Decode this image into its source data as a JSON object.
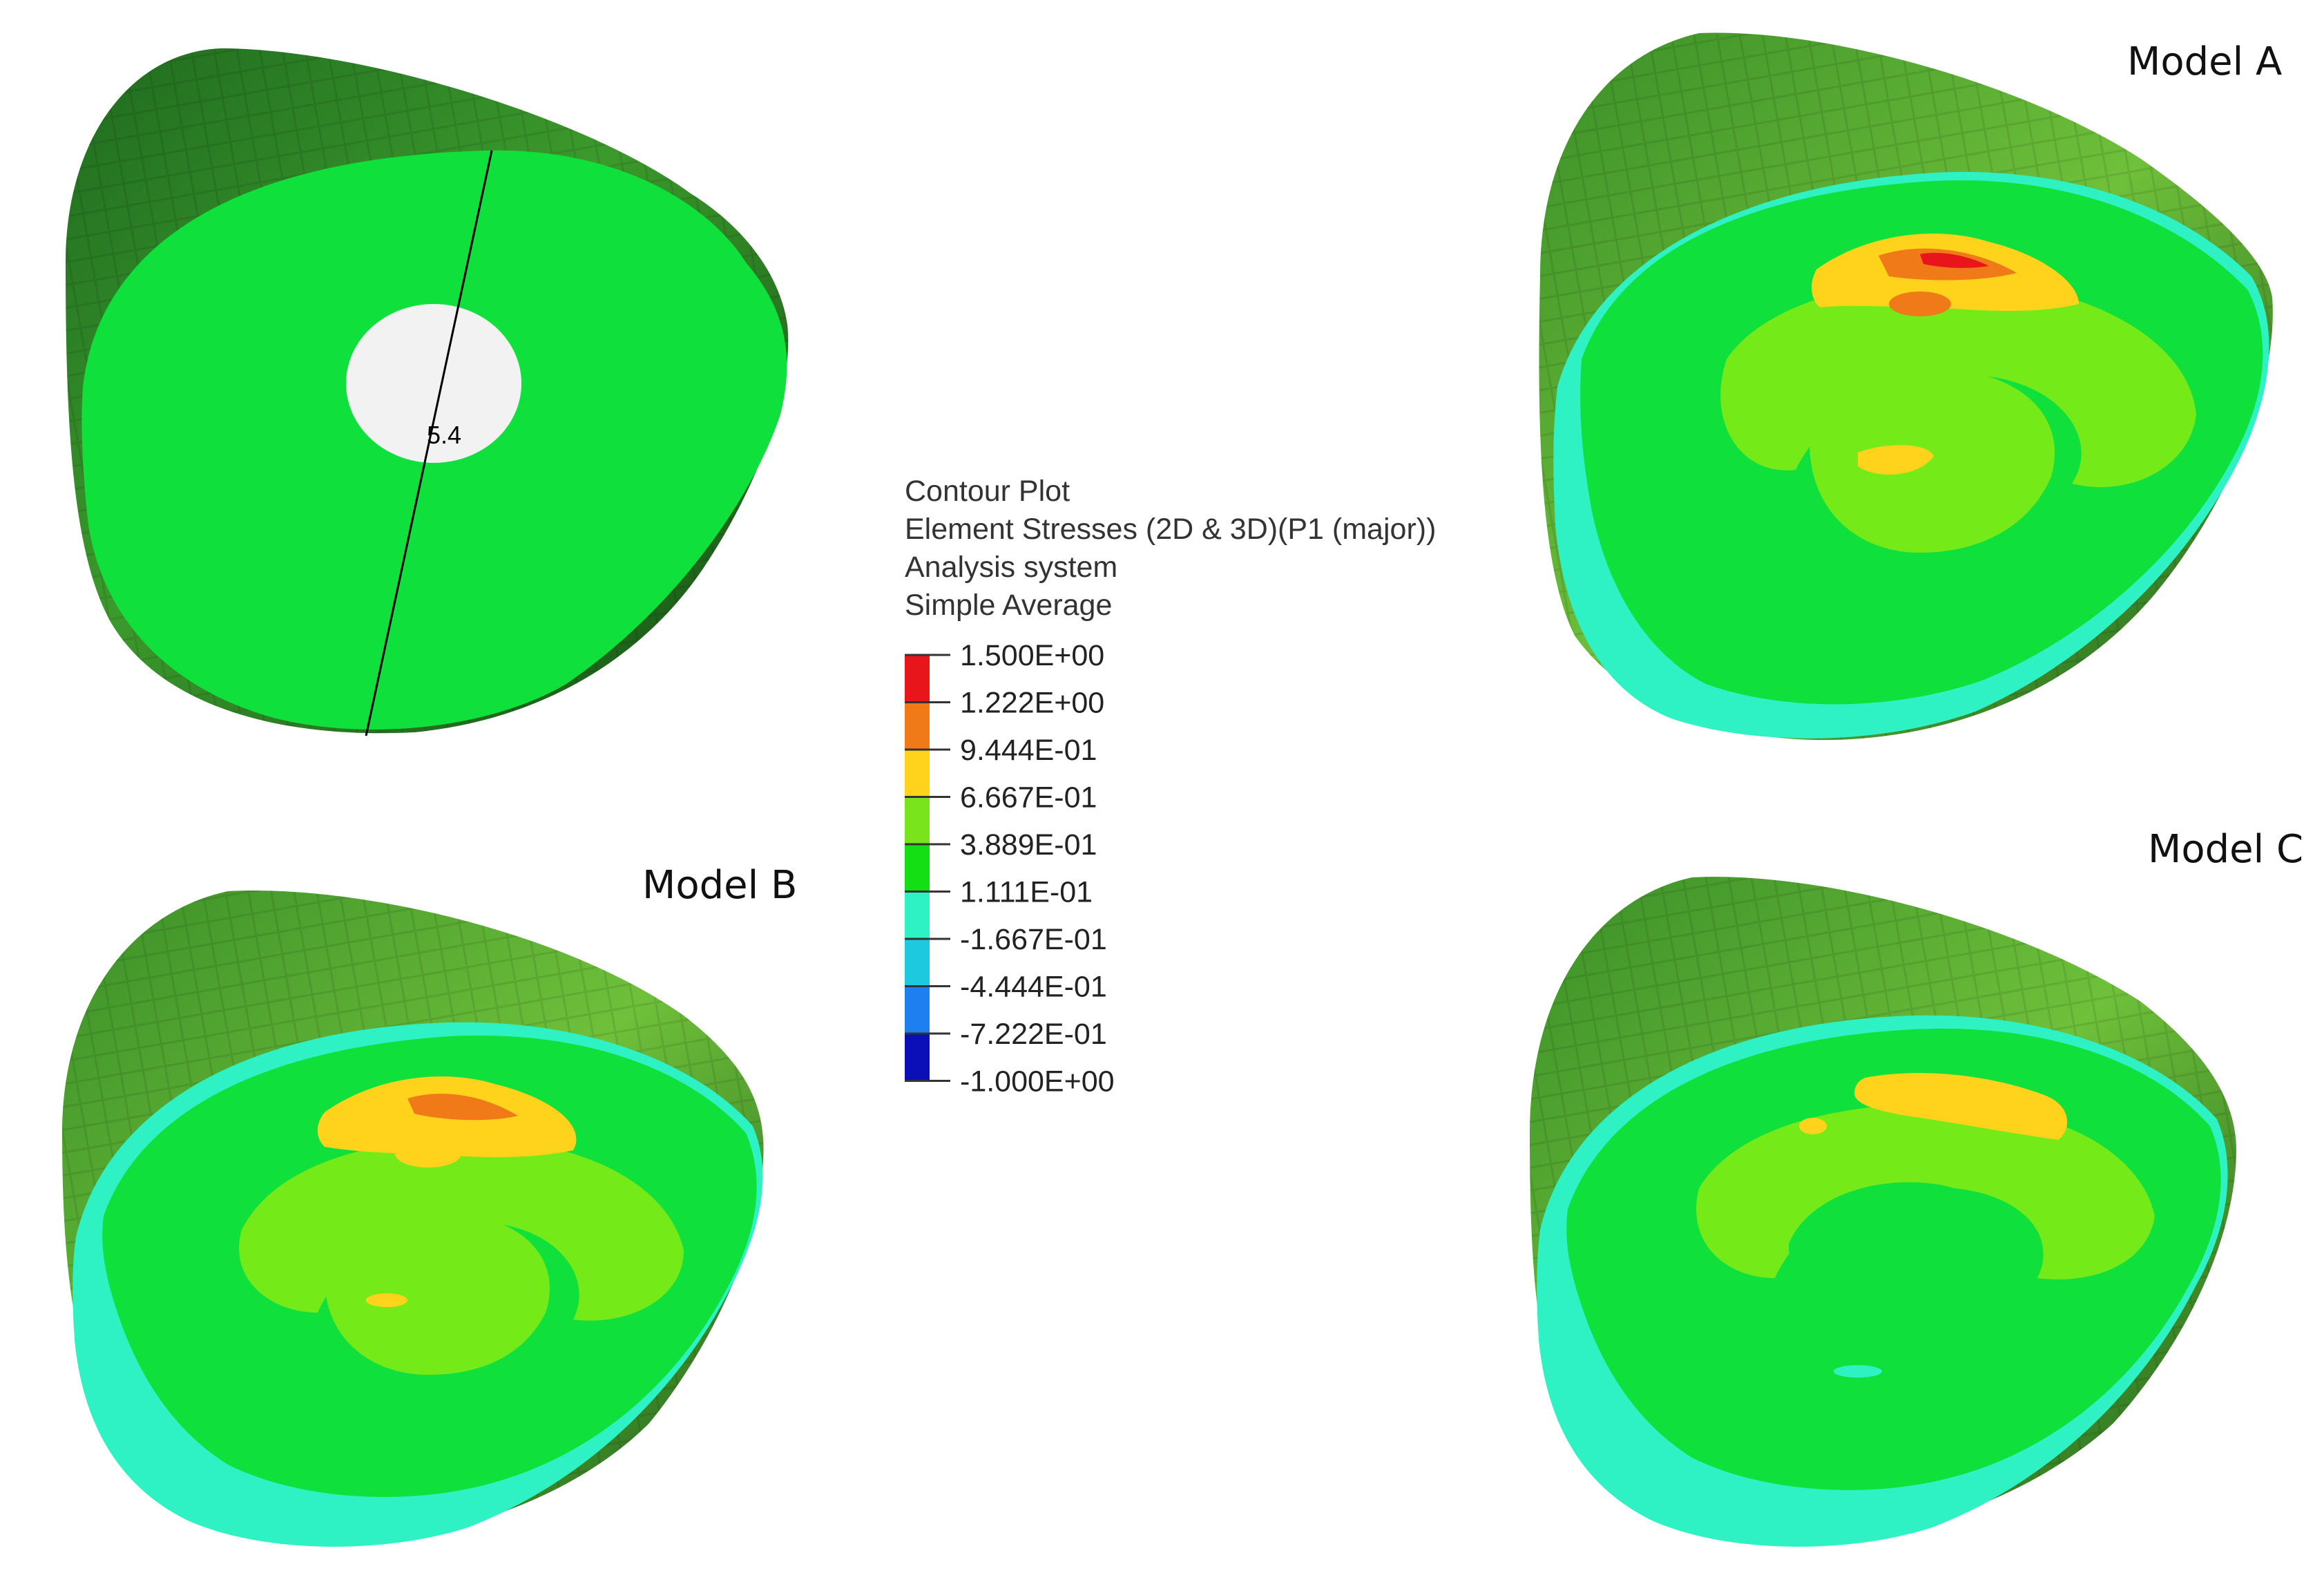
{
  "figure": {
    "models": [
      {
        "id": "model-a",
        "label": "Model A"
      },
      {
        "id": "model-b",
        "label": "Model B"
      },
      {
        "id": "model-c",
        "label": "Model C"
      }
    ],
    "reference": {
      "dimension_label": "5.4"
    }
  },
  "legend": {
    "title_lines": [
      "Contour Plot",
      "Element Stresses (2D & 3D)(P1 (major))",
      "Analysis system",
      "Simple Average"
    ],
    "values": [
      "1.500E+00",
      "1.222E+00",
      "9.444E-01",
      "6.667E-01",
      "3.889E-01",
      "1.111E-01",
      "-1.667E-01",
      "-4.444E-01",
      "-7.222E-01",
      "-1.000E+00"
    ],
    "colors": [
      "#e8161a",
      "#f07a18",
      "#ffd21c",
      "#79e31b",
      "#14df14",
      "#2ef2c3",
      "#1cc9de",
      "#1e7ff0",
      "#0b0fb8"
    ]
  },
  "colors": {
    "dark_green": "#1c6b1c",
    "mid_green": "#3f9a2a",
    "bright_green": "#10e03c",
    "yellow_green": "#74ea18",
    "cyan": "#2ef2c3",
    "yellow": "#ffd21c",
    "orange": "#f07a18",
    "red": "#e8161a",
    "hole": "#f2f2f2"
  }
}
